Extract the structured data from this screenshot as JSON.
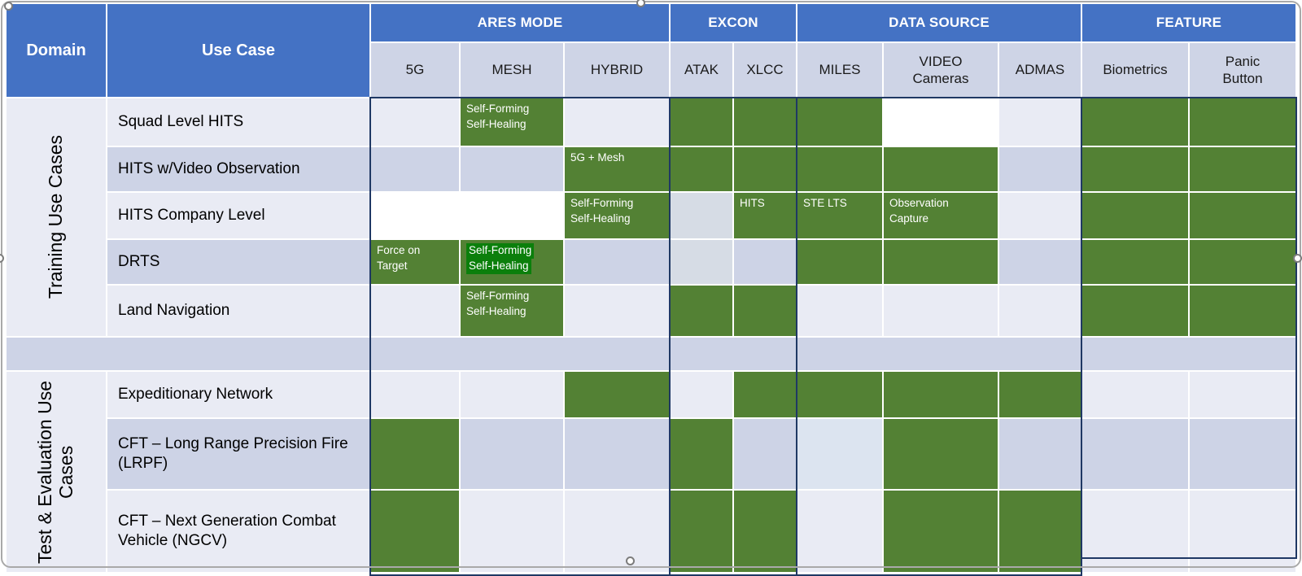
{
  "colors": {
    "header_blue": "#4472C4",
    "subheader": "#CED4E6",
    "row_light": "#E9EBF4",
    "row_lavender": "#CDD3E6",
    "pale": "#D6DCE5",
    "pale_blue": "#DCE4F0",
    "green": "#538134",
    "highlight_green": "#0B7F0B",
    "navy_border": "#1F3864"
  },
  "table": {
    "header": {
      "domain": "Domain",
      "use_case": "Use Case",
      "groups": [
        {
          "label": "ARES MODE",
          "columns": [
            {
              "key": "5g",
              "label": "5G"
            },
            {
              "key": "mesh",
              "label": "MESH"
            },
            {
              "key": "hybrid",
              "label": "HYBRID"
            }
          ]
        },
        {
          "label": "EXCON",
          "columns": [
            {
              "key": "atak",
              "label": "ATAK"
            },
            {
              "key": "xlcc",
              "label": "XLCC"
            }
          ]
        },
        {
          "label": "DATA SOURCE",
          "columns": [
            {
              "key": "miles",
              "label": "MILES"
            },
            {
              "key": "video-cameras",
              "label": "VIDEO\nCameras"
            },
            {
              "key": "admas",
              "label": "ADMAS"
            }
          ]
        },
        {
          "label": "FEATURE",
          "columns": [
            {
              "key": "biometrics",
              "label": "Biometrics"
            },
            {
              "key": "panic-button",
              "label": "Panic\nButton"
            }
          ]
        }
      ]
    },
    "sections": [
      {
        "domain": "Training Use Cases",
        "rows": [
          {
            "use_case": "Squad Level HITS",
            "tint": "light",
            "cells": [
              null,
              {
                "fill": "green",
                "label": "Self-Forming\nSelf-Healing"
              },
              null,
              {
                "fill": "green"
              },
              {
                "fill": "green"
              },
              {
                "fill": "green"
              },
              {
                "fill": "white"
              },
              null,
              {
                "fill": "green"
              },
              {
                "fill": "green"
              }
            ]
          },
          {
            "use_case": "HITS w/Video Observation",
            "tint": "lavender",
            "cells": [
              null,
              null,
              {
                "fill": "green",
                "label": "5G + Mesh"
              },
              {
                "fill": "green"
              },
              {
                "fill": "green"
              },
              {
                "fill": "green"
              },
              {
                "fill": "green"
              },
              null,
              {
                "fill": "green"
              },
              {
                "fill": "green"
              }
            ]
          },
          {
            "use_case": "HITS Company Level",
            "tint": "light",
            "cells": [
              {
                "fill": "white"
              },
              {
                "fill": "white"
              },
              {
                "fill": "green",
                "label": "Self-Forming\nSelf-Healing"
              },
              {
                "fill": "pale"
              },
              {
                "fill": "green",
                "label": "HITS"
              },
              {
                "fill": "green",
                "label": "STE LTS"
              },
              {
                "fill": "green",
                "label": "Observation\nCapture"
              },
              null,
              {
                "fill": "green"
              },
              {
                "fill": "green"
              }
            ]
          },
          {
            "use_case": "DRTS",
            "tint": "lavender",
            "cells": [
              {
                "fill": "green",
                "label": "Force on\nTarget"
              },
              {
                "fill": "green",
                "label": "Self-Forming\nSelf-Healing",
                "highlight": true
              },
              null,
              {
                "fill": "pale"
              },
              null,
              {
                "fill": "green"
              },
              {
                "fill": "green"
              },
              null,
              {
                "fill": "green"
              },
              {
                "fill": "green"
              }
            ]
          },
          {
            "use_case": "Land Navigation",
            "tint": "light",
            "cells": [
              null,
              {
                "fill": "green",
                "label": "Self-Forming\nSelf-Healing"
              },
              null,
              {
                "fill": "green"
              },
              {
                "fill": "green"
              },
              null,
              null,
              null,
              {
                "fill": "green"
              },
              {
                "fill": "green"
              }
            ]
          }
        ]
      },
      {
        "domain": "Test & Evaluation Use Cases",
        "rows": [
          {
            "use_case": "Expeditionary Network",
            "tint": "light",
            "cells": [
              null,
              null,
              {
                "fill": "green"
              },
              null,
              {
                "fill": "green"
              },
              {
                "fill": "green"
              },
              {
                "fill": "green"
              },
              {
                "fill": "green"
              },
              null,
              null
            ]
          },
          {
            "use_case": "CFT – Long Range Precision Fire (LRPF)",
            "tint": "lavender",
            "cells": [
              {
                "fill": "green"
              },
              null,
              null,
              {
                "fill": "green"
              },
              null,
              {
                "fill": "paleblue"
              },
              {
                "fill": "green"
              },
              null,
              null,
              null
            ]
          },
          {
            "use_case": "CFT – Next Generation Combat Vehicle (NGCV)",
            "tint": "light",
            "cells": [
              {
                "fill": "green"
              },
              null,
              null,
              {
                "fill": "green"
              },
              {
                "fill": "green"
              },
              null,
              {
                "fill": "green"
              },
              {
                "fill": "green"
              },
              null,
              null
            ]
          }
        ]
      }
    ],
    "spacer_row": {
      "tint": "lavender"
    }
  }
}
